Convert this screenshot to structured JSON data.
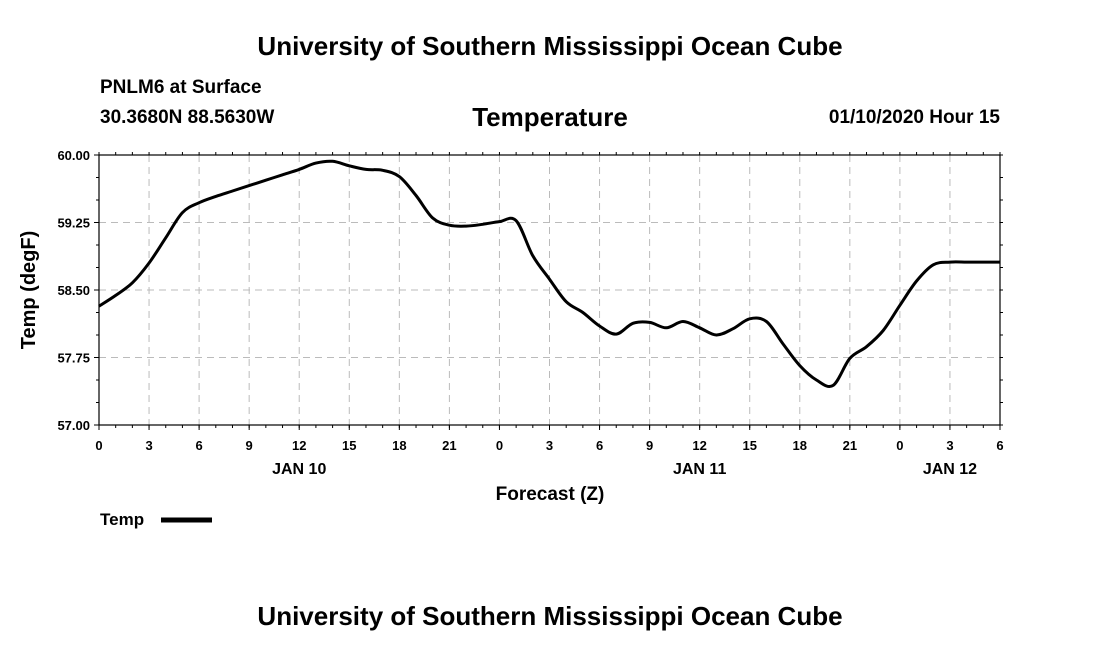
{
  "header": {
    "title": "University of Southern Mississippi Ocean Cube",
    "station": "PNLM6 at Surface",
    "coords": "30.3680N 88.5630W",
    "variable": "Temperature",
    "datetime": "01/10/2020 Hour 15"
  },
  "footer": {
    "title": "University of Southern Mississippi Ocean Cube"
  },
  "colors": {
    "line": "#000000",
    "grid": "#bbbbbb",
    "background": "#ffffff"
  },
  "chart_data": {
    "type": "line",
    "title": "Temperature",
    "xlabel": "Forecast (Z)",
    "ylabel": "Temp (degF)",
    "ylim": [
      57.0,
      60.0
    ],
    "xlim": [
      0,
      54
    ],
    "yticks": [
      "57.00",
      "57.75",
      "58.50",
      "59.25",
      "60.00"
    ],
    "ytick_values": [
      57.0,
      57.75,
      58.5,
      59.25,
      60.0
    ],
    "xtick_labels": [
      "0",
      "3",
      "6",
      "9",
      "12",
      "15",
      "18",
      "21",
      "0",
      "3",
      "6",
      "9",
      "12",
      "15",
      "18",
      "21",
      "0",
      "3",
      "6"
    ],
    "date_labels": [
      {
        "label": "JAN 10",
        "hour": 12
      },
      {
        "label": "JAN 11",
        "hour": 36
      },
      {
        "label": "JAN 12",
        "hour": 51
      }
    ],
    "grid": true,
    "legend": {
      "position": "bottom-left",
      "entries": [
        "Temp"
      ]
    },
    "series": [
      {
        "name": "Temp",
        "x": [
          0,
          1,
          2,
          3,
          4,
          5,
          6,
          7,
          8,
          9,
          10,
          11,
          12,
          13,
          14,
          15,
          16,
          17,
          18,
          19,
          20,
          21,
          22,
          23,
          24,
          25,
          26,
          27,
          28,
          29,
          30,
          31,
          32,
          33,
          34,
          35,
          36,
          37,
          38,
          39,
          40,
          41,
          42,
          43,
          44,
          45,
          46,
          47,
          48,
          49,
          50,
          51,
          52,
          53,
          54
        ],
        "values": [
          58.32,
          58.44,
          58.58,
          58.8,
          59.08,
          59.36,
          59.47,
          59.54,
          59.6,
          59.66,
          59.72,
          59.78,
          59.84,
          59.91,
          59.93,
          59.88,
          59.84,
          59.83,
          59.76,
          59.55,
          59.3,
          59.22,
          59.21,
          59.23,
          59.26,
          59.27,
          58.88,
          58.62,
          58.37,
          58.25,
          58.1,
          58.01,
          58.13,
          58.14,
          58.08,
          58.15,
          58.08,
          58.0,
          58.07,
          58.18,
          58.15,
          57.9,
          57.66,
          57.5,
          57.44,
          57.74,
          57.87,
          58.05,
          58.33,
          58.6,
          58.78,
          58.81,
          58.81,
          58.81,
          58.81
        ]
      }
    ]
  }
}
